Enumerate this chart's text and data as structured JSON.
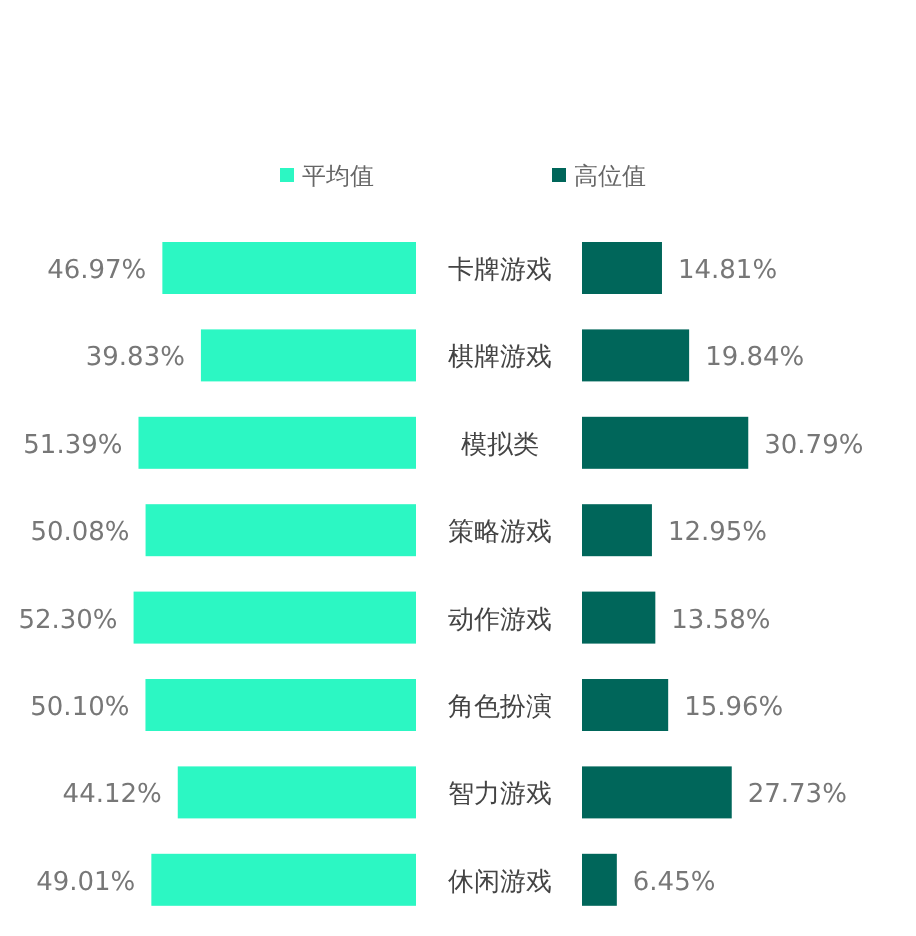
{
  "chart_data": [
    {
      "type": "bar",
      "orientation": "horizontal",
      "legend": "top",
      "data_labels": true,
      "categories": [
        "卡牌游戏",
        "棋牌游戏",
        "模拟类",
        "策略游戏",
        "动作游戏",
        "角色扮演",
        "智力游戏",
        "休闲游戏"
      ],
      "series": [
        {
          "name": "平均值",
          "color": "#2cf7c3",
          "values": [
            46.97,
            39.83,
            51.39,
            50.08,
            52.3,
            50.1,
            44.12,
            49.01
          ],
          "value_labels": [
            "46.97%",
            "39.83%",
            "51.39%",
            "50.08%",
            "52.30%",
            "50.10%",
            "44.12%",
            "49.01%"
          ]
        }
      ]
    },
    {
      "type": "bar",
      "orientation": "horizontal",
      "legend": "top",
      "data_labels": true,
      "categories": [
        null,
        null,
        null,
        null,
        null,
        null,
        null,
        null
      ],
      "series": [
        {
          "name": "高位值",
          "color": "#00665a",
          "values": [
            14.81,
            19.84,
            30.79,
            12.95,
            13.58,
            15.96,
            27.73,
            6.45
          ],
          "value_labels": [
            "14.81%",
            "19.84%",
            "30.79%",
            "12.95%",
            "13.58%",
            "15.96%",
            "27.73%",
            "6.45%"
          ]
        }
      ]
    }
  ]
}
